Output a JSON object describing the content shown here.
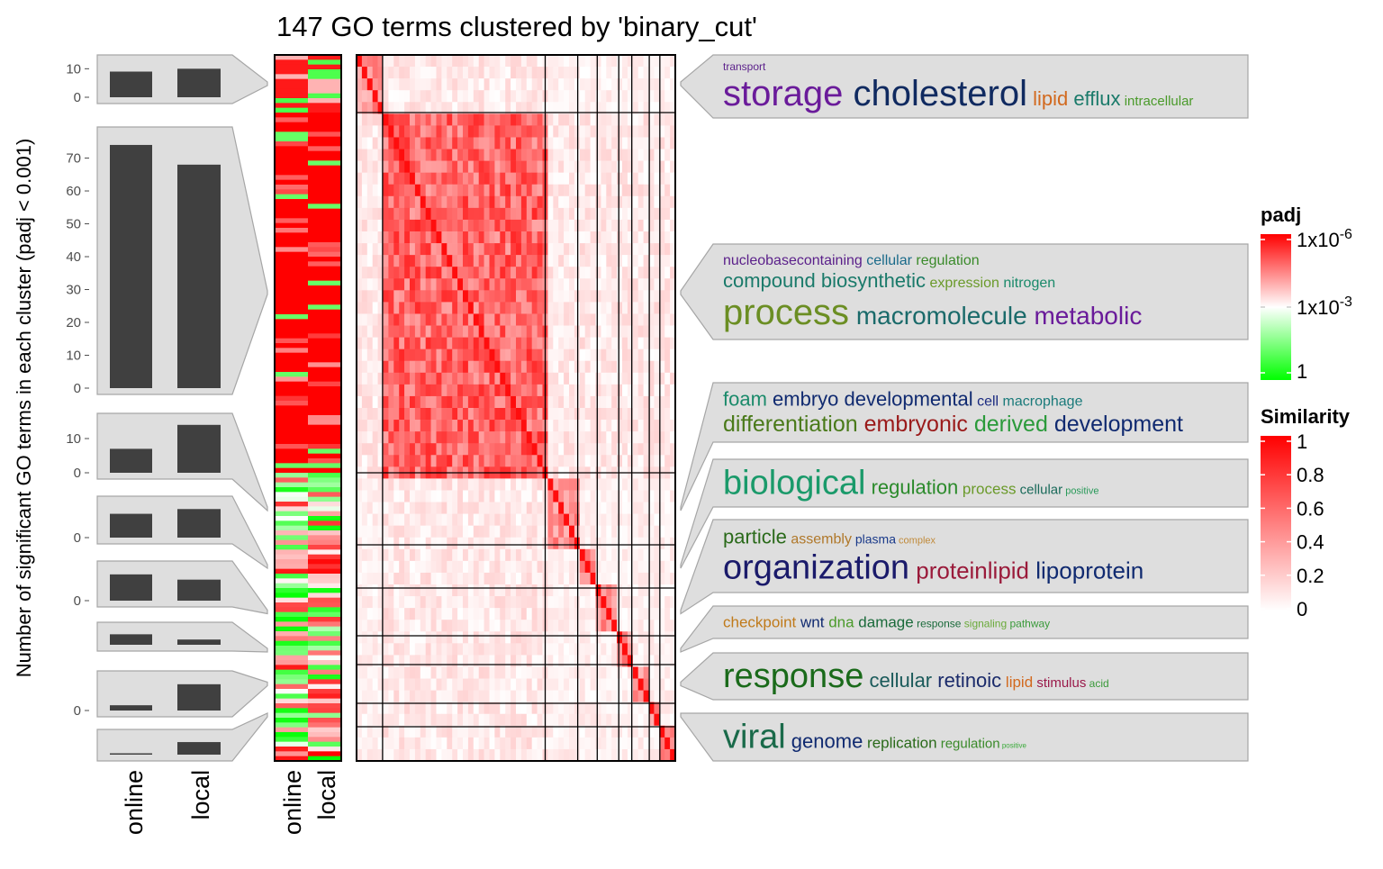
{
  "title": "147 GO terms clustered by 'binary_cut'",
  "y_axis_label": "Number of significant GO terms in each cluster (padj < 0.001)",
  "column_labels": [
    "online",
    "local"
  ],
  "colors": {
    "bar": "#404040",
    "panel": "#dedede",
    "panel_border": "#a6a6a6",
    "high": "#ff0000",
    "mid": "#ffffff",
    "low": "#00ff00"
  },
  "legends": {
    "padj": {
      "title": "padj",
      "tick_labels": [
        "1x10",
        "1x10",
        "1"
      ],
      "tick_sups": [
        "-6",
        "-3",
        ""
      ]
    },
    "similarity": {
      "title": "Similarity",
      "tick_labels": [
        "1",
        "0.8",
        "0.6",
        "0.4",
        "0.2",
        "0"
      ]
    }
  },
  "chart_data": {
    "type": "bar",
    "n_terms": 147,
    "method": "binary_cut",
    "series_names": [
      "online",
      "local"
    ],
    "clusters": [
      {
        "id": 1,
        "online": 9,
        "local": 10,
        "ticks": [
          "10",
          "0"
        ],
        "ymax": 12,
        "words": [
          {
            "text": "transport",
            "color": "#5a1f8a",
            "size": 12,
            "line": 0
          },
          {
            "text": "storage",
            "color": "#6a1b9a",
            "size": 40,
            "line": 1
          },
          {
            "text": "cholesterol",
            "color": "#102a60",
            "size": 40,
            "line": 1
          },
          {
            "text": "lipid",
            "color": "#d2691e",
            "size": 22,
            "line": 1
          },
          {
            "text": "efflux",
            "color": "#1a7a6a",
            "size": 22,
            "line": 1
          },
          {
            "text": "intracellular",
            "color": "#4a9a2a",
            "size": 15,
            "line": 1
          }
        ]
      },
      {
        "id": 2,
        "online": 74,
        "local": 68,
        "ticks": [
          "70",
          "60",
          "50",
          "40",
          "30",
          "20",
          "10",
          "0"
        ],
        "ymax": 77,
        "words": [
          {
            "text": "nucleobasecontaining",
            "color": "#5a1f8a",
            "size": 16,
            "line": 0
          },
          {
            "text": "cellular",
            "color": "#1a6a8a",
            "size": 16,
            "line": 0
          },
          {
            "text": "regulation",
            "color": "#3a8a2a",
            "size": 16,
            "line": 0
          },
          {
            "text": "compound",
            "color": "#1a7a6a",
            "size": 22,
            "line": 1
          },
          {
            "text": "biosynthetic",
            "color": "#1a7a6a",
            "size": 22,
            "line": 1
          },
          {
            "text": "expression",
            "color": "#6a9a2a",
            "size": 16,
            "line": 1
          },
          {
            "text": "nitrogen",
            "color": "#1a8a6a",
            "size": 16,
            "line": 1
          },
          {
            "text": "process",
            "color": "#6b8e23",
            "size": 40,
            "line": 2
          },
          {
            "text": "macromolecule",
            "color": "#1a6a6a",
            "size": 28,
            "line": 2
          },
          {
            "text": "metabolic",
            "color": "#6a1b9a",
            "size": 28,
            "line": 2
          }
        ]
      },
      {
        "id": 3,
        "online": 7,
        "local": 14,
        "ticks": [
          "10",
          "0"
        ],
        "ymax": 15,
        "words": [
          {
            "text": "foam",
            "color": "#1a8a6a",
            "size": 22,
            "line": 0
          },
          {
            "text": "embryo",
            "color": "#102a70",
            "size": 22,
            "line": 0
          },
          {
            "text": "developmental",
            "color": "#102a70",
            "size": 22,
            "line": 0
          },
          {
            "text": "cell",
            "color": "#1a2a80",
            "size": 16,
            "line": 0
          },
          {
            "text": "macrophage",
            "color": "#1a7a7a",
            "size": 16,
            "line": 0
          },
          {
            "text": "differentiation",
            "color": "#4a7a1a",
            "size": 25,
            "line": 1
          },
          {
            "text": "embryonic",
            "color": "#9a1a1a",
            "size": 25,
            "line": 1
          },
          {
            "text": "derived",
            "color": "#2a9a3a",
            "size": 25,
            "line": 1
          },
          {
            "text": "development",
            "color": "#102a70",
            "size": 25,
            "line": 1
          }
        ]
      },
      {
        "id": 4,
        "online": 5,
        "local": 6,
        "ticks": [
          "0"
        ],
        "ymax": 7,
        "words": [
          {
            "text": "biological",
            "color": "#1a9a6a",
            "size": 38,
            "line": 0
          },
          {
            "text": "regulation",
            "color": "#2a8a2a",
            "size": 22,
            "line": 0
          },
          {
            "text": "process",
            "color": "#6a9a2a",
            "size": 17,
            "line": 0
          },
          {
            "text": "cellular",
            "color": "#1a6a5a",
            "size": 15,
            "line": 0
          },
          {
            "text": "positive",
            "color": "#2a9a5a",
            "size": 11,
            "line": 0
          }
        ]
      },
      {
        "id": 5,
        "online": 5,
        "local": 4,
        "ticks": [
          "0"
        ],
        "ymax": 6,
        "words": [
          {
            "text": "particle",
            "color": "#2a6a1a",
            "size": 22,
            "line": 0
          },
          {
            "text": "assembly",
            "color": "#b0782a",
            "size": 16,
            "line": 0
          },
          {
            "text": "plasma",
            "color": "#1a3a8a",
            "size": 14,
            "line": 0
          },
          {
            "text": "complex",
            "color": "#c08a3a",
            "size": 11,
            "line": 0
          },
          {
            "text": "organization",
            "color": "#1a1a6a",
            "size": 38,
            "line": 1
          },
          {
            "text": "proteinlipid",
            "color": "#9a1a3a",
            "size": 26,
            "line": 1
          },
          {
            "text": "lipoprotein",
            "color": "#102a70",
            "size": 26,
            "line": 1
          }
        ]
      },
      {
        "id": 6,
        "online": 1.6,
        "local": 0.8,
        "ticks": [],
        "ymax": 2.2,
        "words": [
          {
            "text": "checkpoint",
            "color": "#c07a1a",
            "size": 17,
            "line": 0
          },
          {
            "text": "wnt",
            "color": "#102a70",
            "size": 17,
            "line": 0
          },
          {
            "text": "dna",
            "color": "#4a9a2a",
            "size": 17,
            "line": 0
          },
          {
            "text": "damage",
            "color": "#1a6a3a",
            "size": 17,
            "line": 0
          },
          {
            "text": "response",
            "color": "#1a6a3a",
            "size": 12,
            "line": 0
          },
          {
            "text": "signaling",
            "color": "#6aaa3a",
            "size": 12,
            "line": 0
          },
          {
            "text": "pathway",
            "color": "#3a9a3a",
            "size": 12,
            "line": 0
          }
        ]
      },
      {
        "id": 7,
        "online": 1,
        "local": 5,
        "ticks": [
          "0"
        ],
        "ymax": 6,
        "words": [
          {
            "text": "response",
            "color": "#1a6a1a",
            "size": 38,
            "line": 0
          },
          {
            "text": "cellular",
            "color": "#1a5a5a",
            "size": 22,
            "line": 0
          },
          {
            "text": "retinoic",
            "color": "#1a2a6a",
            "size": 22,
            "line": 0
          },
          {
            "text": "lipid",
            "color": "#d2691e",
            "size": 17,
            "line": 0
          },
          {
            "text": "stimulus",
            "color": "#9a1a4a",
            "size": 15,
            "line": 0
          },
          {
            "text": "acid",
            "color": "#3a9a3a",
            "size": 12,
            "line": 0
          }
        ]
      },
      {
        "id": 8,
        "online": 0.1,
        "local": 2.2,
        "ticks": [],
        "ymax": 3,
        "words": [
          {
            "text": "viral",
            "color": "#1a6a4a",
            "size": 38,
            "line": 0
          },
          {
            "text": "genome",
            "color": "#102a70",
            "size": 22,
            "line": 0
          },
          {
            "text": "replication",
            "color": "#2a6a1a",
            "size": 17,
            "line": 0
          },
          {
            "text": "regulation",
            "color": "#3a8a2a",
            "size": 15,
            "line": 0
          },
          {
            "text": "positive",
            "color": "#3aaa3a",
            "size": 8,
            "line": 0
          }
        ]
      }
    ]
  }
}
